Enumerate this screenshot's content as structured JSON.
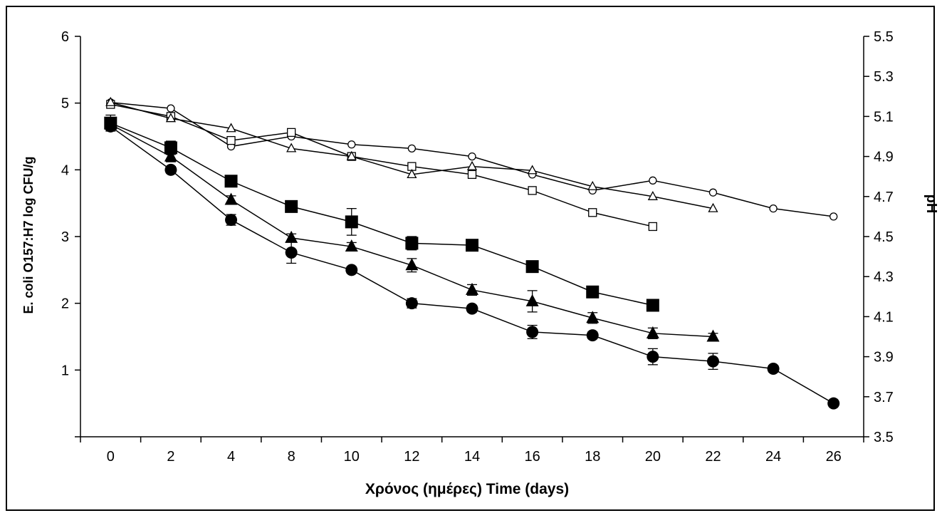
{
  "chart_data": {
    "type": "line",
    "xlabel": "Χρόνος (ημέρες) Time (days)",
    "ylabel": "E. coli O157:H7 log CFU/g",
    "y2label": "pH",
    "categories": [
      "0",
      "2",
      "4",
      "8",
      "10",
      "12",
      "14",
      "16",
      "18",
      "20",
      "22",
      "24",
      "26"
    ],
    "ylim": [
      0,
      6
    ],
    "yticks": [
      "1",
      "2",
      "3",
      "4",
      "5",
      "6"
    ],
    "y2lim": [
      3.5,
      5.5
    ],
    "y2ticks": [
      "3.5",
      "3.7",
      "3.9",
      "4.1",
      "4.3",
      "4.5",
      "4.7",
      "4.9",
      "5.1",
      "5.3",
      "5.5"
    ],
    "grid": false,
    "legend": "none",
    "series": [
      {
        "marker": "filled-square",
        "axis": "left",
        "color": "#000000",
        "values": [
          4.7,
          4.33,
          3.83,
          3.45,
          3.22,
          2.9,
          2.87,
          2.55,
          2.17,
          1.97,
          null,
          null,
          null
        ],
        "errors": [
          0.12,
          0.1,
          0.05,
          0.06,
          0.2,
          0.1,
          0.05,
          0.05,
          0.05,
          0.05,
          null,
          null,
          null
        ]
      },
      {
        "marker": "filled-triangle",
        "axis": "left",
        "color": "#000000",
        "values": [
          4.68,
          4.2,
          3.55,
          2.98,
          2.85,
          2.57,
          2.2,
          2.03,
          1.78,
          1.55,
          1.5,
          null,
          null
        ],
        "errors": [
          0.08,
          0.08,
          0.06,
          0.06,
          0.06,
          0.1,
          0.08,
          0.16,
          0.08,
          0.08,
          0.05,
          null,
          null
        ]
      },
      {
        "marker": "filled-circle",
        "axis": "left",
        "color": "#000000",
        "values": [
          4.65,
          4.0,
          3.25,
          2.76,
          2.5,
          2.0,
          1.92,
          1.57,
          1.52,
          1.2,
          1.13,
          1.02,
          0.5
        ],
        "errors": [
          0.05,
          0.05,
          0.08,
          0.16,
          0.05,
          0.07,
          0.05,
          0.1,
          0.05,
          0.12,
          0.12,
          0.05,
          0.0
        ]
      },
      {
        "marker": "open-circle",
        "axis": "right",
        "color": "#000000",
        "values": [
          5.17,
          5.14,
          4.95,
          5.0,
          4.96,
          4.94,
          4.9,
          4.81,
          4.73,
          4.78,
          4.72,
          4.64,
          4.6
        ]
      },
      {
        "marker": "open-square",
        "axis": "right",
        "color": "#000000",
        "values": [
          5.16,
          5.1,
          4.98,
          5.02,
          4.9,
          4.85,
          4.81,
          4.73,
          4.62,
          4.55,
          null,
          null,
          null
        ]
      },
      {
        "marker": "open-triangle",
        "axis": "right",
        "color": "#000000",
        "values": [
          5.17,
          5.09,
          5.04,
          4.94,
          4.9,
          4.81,
          4.85,
          4.83,
          4.75,
          4.7,
          4.64,
          null,
          null
        ]
      }
    ]
  }
}
